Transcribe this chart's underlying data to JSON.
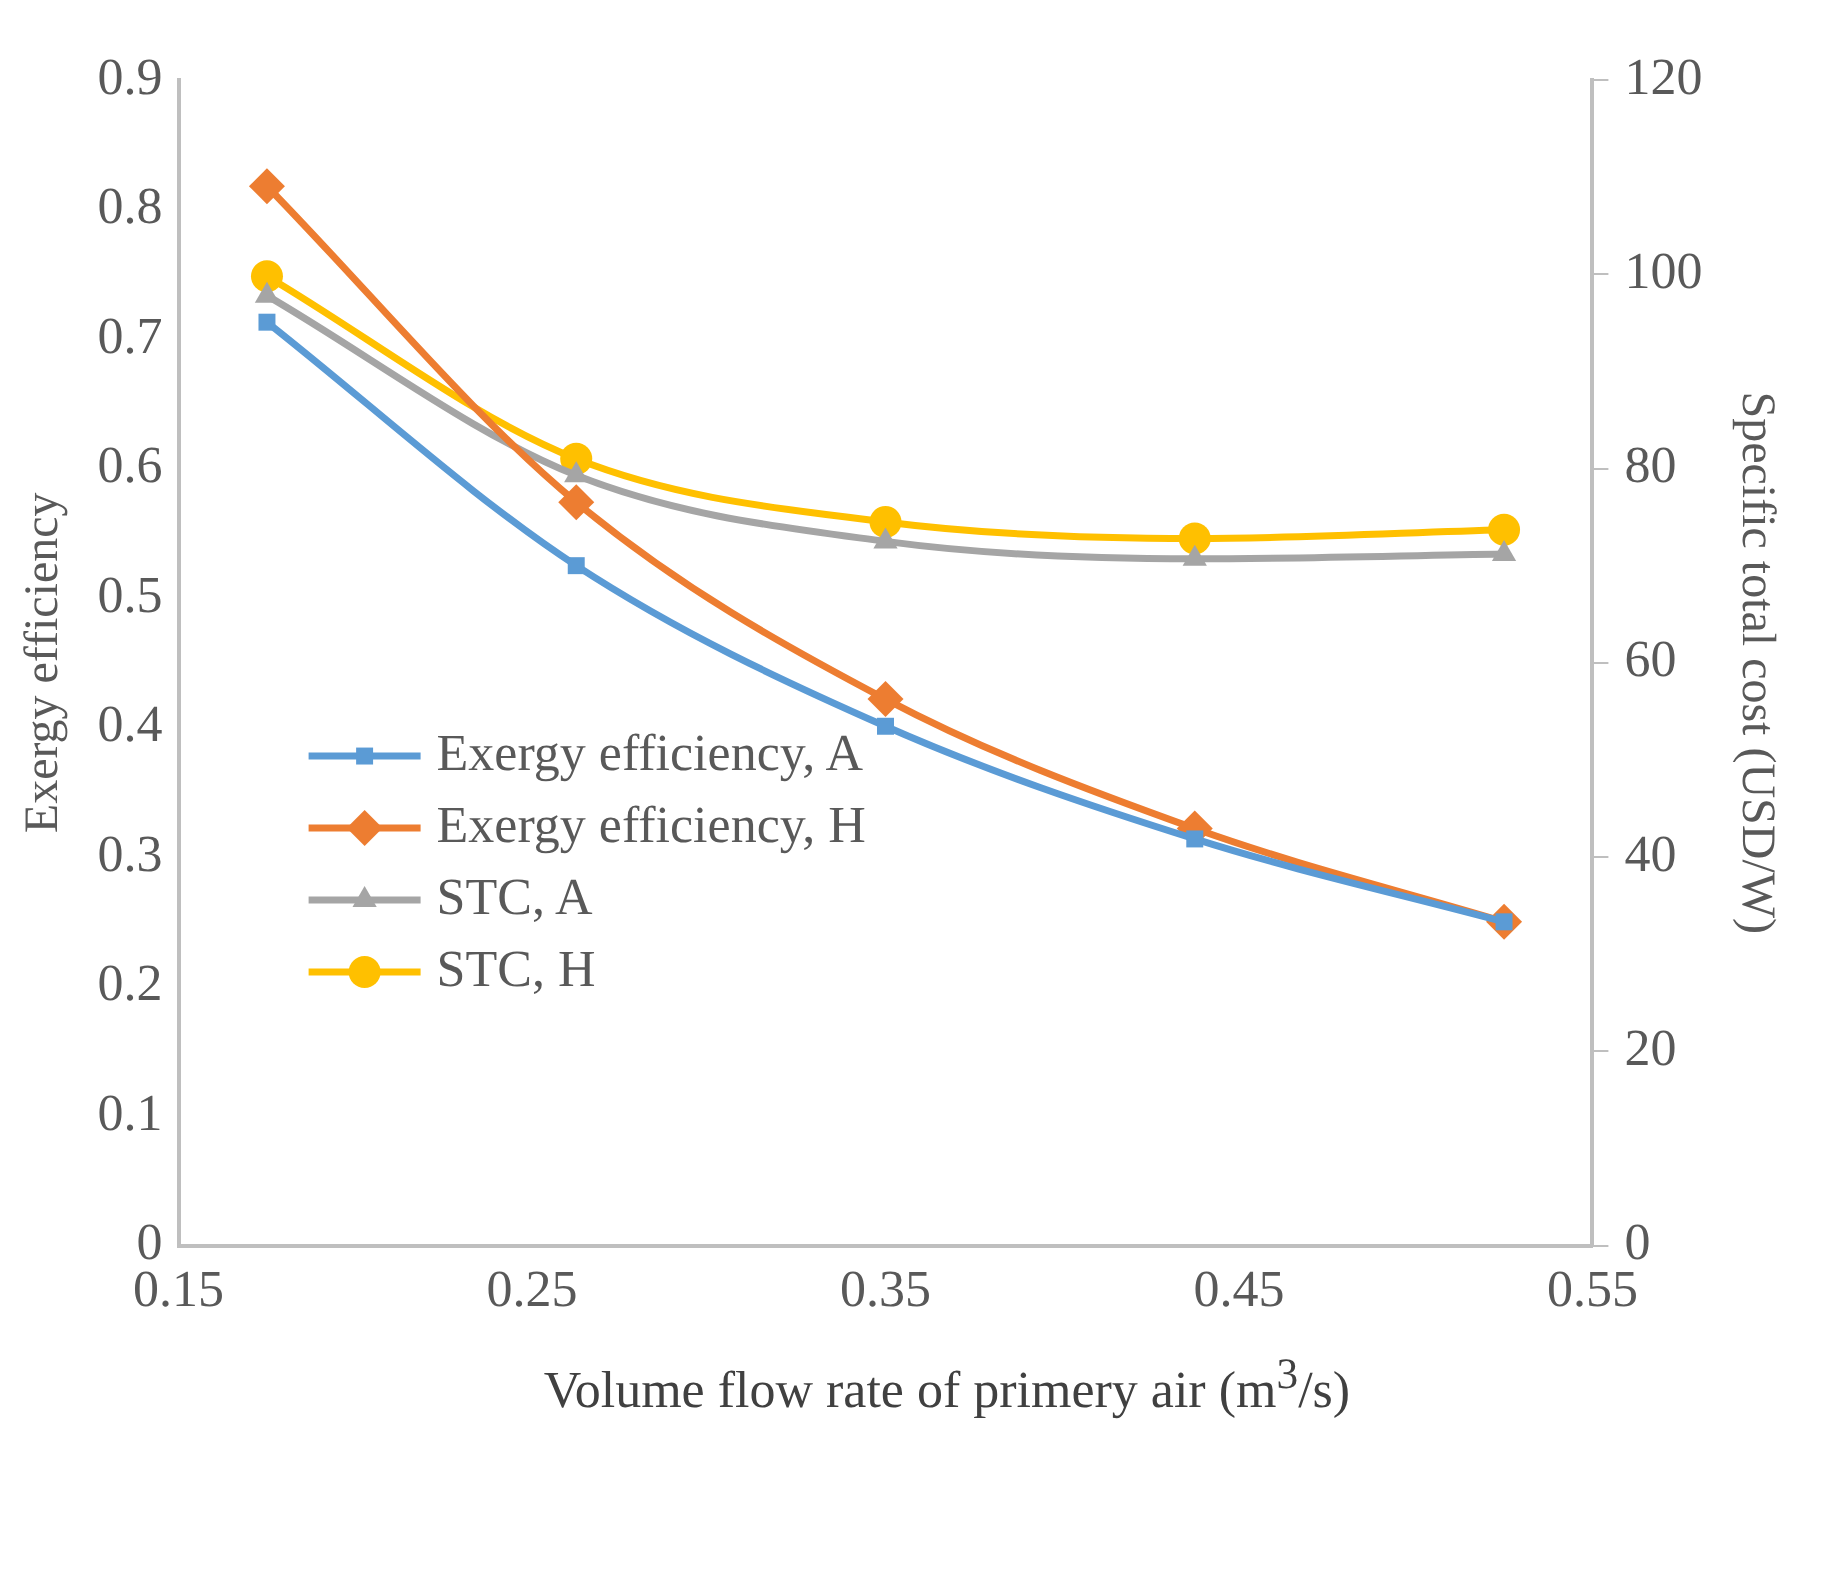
{
  "chart_data": {
    "type": "line",
    "xlabel": "Volume flow rate of primery air (m$^{3}$/s)",
    "ylabel": "Exergy efficiency",
    "y2label": "Specific total cost (USD/W)",
    "x": [
      0.175,
      0.2625,
      0.35,
      0.4375,
      0.525
    ],
    "xlim": [
      0.15,
      0.55
    ],
    "xticks": [
      0.15,
      0.25,
      0.35,
      0.45,
      0.55
    ],
    "ylim": [
      0,
      0.9
    ],
    "yticks": [
      0,
      0.1,
      0.2,
      0.3,
      0.4,
      0.5,
      0.6,
      0.7,
      0.8,
      0.9
    ],
    "y2lim": [
      0,
      120
    ],
    "y2ticks": [
      0,
      20,
      40,
      60,
      80,
      100,
      120
    ],
    "grid": false,
    "legend": "left",
    "series": [
      {
        "name": "Exergy efficiency, A",
        "color": "#5b9bd5",
        "marker": "square",
        "values": [
          0.713,
          0.525,
          0.401,
          0.314,
          0.25
        ]
      },
      {
        "name": "Exergy efficiency, H",
        "color": "#ed7d31",
        "marker": "diamond",
        "values": [
          0.818,
          0.574,
          0.422,
          0.322,
          0.25
        ]
      },
      {
        "name": "STC, A",
        "color": "#a5a5a5",
        "marker": "triangle",
        "axis": "y2",
        "values": [
          97.8,
          79.3,
          72.5,
          70.7,
          71.2
        ]
      },
      {
        "name": "STC, H",
        "color": "#ffc000",
        "marker": "circle",
        "axis": "y2",
        "values": [
          99.8,
          81.0,
          74.5,
          72.8,
          73.7
        ]
      }
    ]
  }
}
